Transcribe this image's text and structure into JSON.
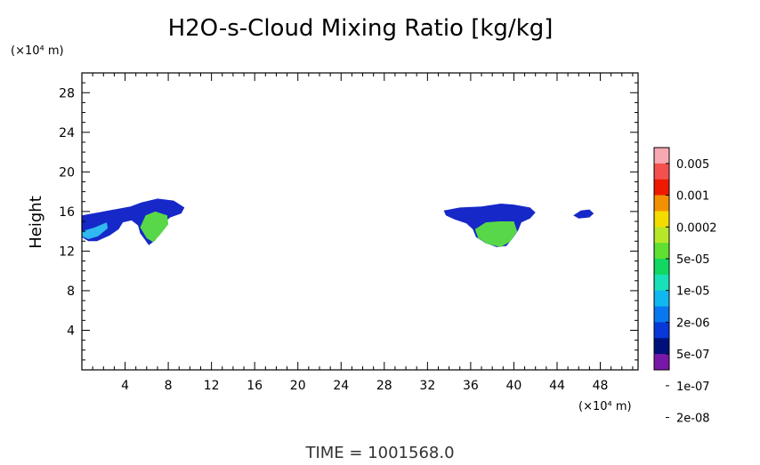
{
  "chart_data": {
    "type": "heatmap",
    "title": "H2O-s-Cloud Mixing Ratio [kg/kg]",
    "ylabel": "Height",
    "x_unit": "(×10⁴ m)",
    "y_unit": "(×10⁴ m)",
    "xlim": [
      0,
      51.5
    ],
    "ylim": [
      0,
      30
    ],
    "x_ticks": [
      "4",
      "8",
      "12",
      "16",
      "20",
      "24",
      "28",
      "32",
      "36",
      "40",
      "44",
      "48"
    ],
    "y_ticks": [
      "4",
      "8",
      "12",
      "16",
      "20",
      "24",
      "28"
    ],
    "colorbar": {
      "labels": [
        "0.005",
        "0.001",
        "0.0002",
        "5e-05",
        "1e-05",
        "2e-06",
        "5e-07",
        "1e-07",
        "2e-08"
      ],
      "colors": [
        "#f7a8b0",
        "#f45050",
        "#ee1a00",
        "#f39000",
        "#f4dc00",
        "#b8e628",
        "#60e030",
        "#10d860",
        "#18e0b8",
        "#10b8f0",
        "#0878f0",
        "#0838d8",
        "#00107a",
        "#7818a8"
      ]
    },
    "regions": [
      {
        "name": "cloud-left-edge",
        "outer": [
          [
            0.0,
            15.6
          ],
          [
            1.5,
            15.9
          ],
          [
            3.0,
            16.2
          ],
          [
            4.5,
            16.5
          ],
          [
            5.5,
            16.9
          ],
          [
            7.0,
            17.3
          ],
          [
            8.5,
            17.1
          ],
          [
            9.5,
            16.4
          ],
          [
            9.2,
            15.8
          ],
          [
            8.2,
            15.4
          ],
          [
            7.5,
            14.8
          ],
          [
            7.2,
            14.0
          ],
          [
            6.8,
            13.1
          ],
          [
            6.2,
            12.6
          ],
          [
            5.8,
            13.2
          ],
          [
            5.4,
            13.8
          ],
          [
            5.2,
            14.6
          ],
          [
            4.6,
            15.1
          ],
          [
            3.8,
            14.9
          ],
          [
            3.4,
            14.2
          ],
          [
            2.6,
            13.6
          ],
          [
            1.4,
            13.0
          ],
          [
            0.6,
            13.0
          ],
          [
            0.0,
            13.4
          ]
        ],
        "inner": [
          [
            0.0,
            14.0
          ],
          [
            1.2,
            14.4
          ],
          [
            2.3,
            14.9
          ],
          [
            2.4,
            14.3
          ],
          [
            1.5,
            13.5
          ],
          [
            0.6,
            13.2
          ],
          [
            0.0,
            13.5
          ]
        ],
        "core": [
          [
            5.4,
            14.4
          ],
          [
            5.9,
            15.6
          ],
          [
            6.8,
            16.0
          ],
          [
            7.9,
            15.6
          ],
          [
            8.0,
            14.7
          ],
          [
            7.2,
            13.6
          ],
          [
            6.6,
            12.9
          ],
          [
            6.0,
            13.3
          ]
        ]
      },
      {
        "name": "cloud-center-right",
        "outer": [
          [
            33.5,
            16.1
          ],
          [
            35.0,
            16.4
          ],
          [
            37.0,
            16.5
          ],
          [
            38.8,
            16.8
          ],
          [
            40.0,
            16.7
          ],
          [
            41.5,
            16.4
          ],
          [
            42.0,
            15.9
          ],
          [
            41.5,
            15.3
          ],
          [
            40.7,
            14.9
          ],
          [
            40.4,
            14.1
          ],
          [
            39.9,
            13.3
          ],
          [
            39.3,
            12.5
          ],
          [
            38.4,
            12.4
          ],
          [
            37.4,
            12.8
          ],
          [
            36.5,
            13.4
          ],
          [
            36.2,
            14.2
          ],
          [
            35.6,
            14.8
          ],
          [
            34.5,
            15.2
          ],
          [
            33.7,
            15.6
          ]
        ],
        "inner": [],
        "core": [
          [
            36.4,
            14.2
          ],
          [
            37.4,
            14.9
          ],
          [
            38.6,
            15.0
          ],
          [
            40.0,
            15.0
          ],
          [
            40.3,
            14.0
          ],
          [
            39.7,
            13.0
          ],
          [
            38.8,
            12.4
          ],
          [
            37.6,
            12.7
          ],
          [
            36.7,
            13.3
          ]
        ]
      },
      {
        "name": "cloud-far-right-small",
        "outer": [
          [
            45.5,
            15.6
          ],
          [
            46.2,
            16.1
          ],
          [
            47.0,
            16.2
          ],
          [
            47.4,
            15.8
          ],
          [
            47.0,
            15.4
          ],
          [
            46.0,
            15.3
          ]
        ],
        "inner": [],
        "core": []
      }
    ]
  },
  "footer": {
    "time_label": "TIME = 1001568.0"
  }
}
